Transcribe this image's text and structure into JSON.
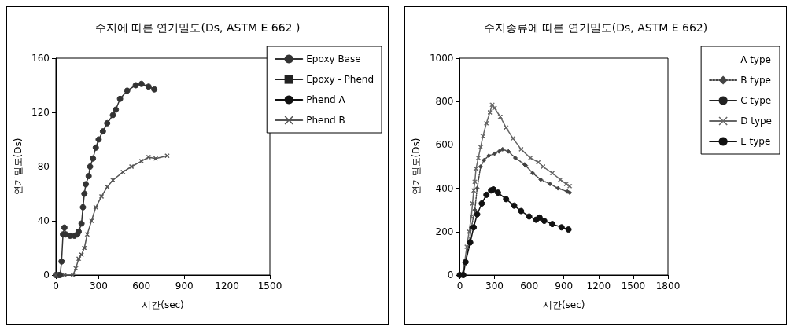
{
  "chart_data": [
    {
      "type": "line",
      "title": "수지에 따른 연기밀도(Ds, ASTM E 662 )",
      "xlabel": "시간(sec)",
      "ylabel": "연기밀도(Ds)",
      "xlim": [
        0,
        1500
      ],
      "xticks": [
        0,
        300,
        600,
        900,
        1200,
        1500
      ],
      "ylim": [
        0,
        160
      ],
      "yticks": [
        0,
        40,
        80,
        120,
        160
      ],
      "grid": false,
      "legend": "top right",
      "series": [
        {
          "name": "Epoxy Base",
          "color": "#333333",
          "marker": "circle",
          "line_style": "solid",
          "x": [
            0,
            20,
            30,
            40,
            50,
            60,
            70,
            100,
            130,
            150,
            160,
            180,
            190,
            200,
            210,
            230,
            240,
            260,
            280,
            300,
            330,
            360,
            400,
            420,
            450,
            500,
            560,
            600,
            650,
            690
          ],
          "values": [
            0,
            0,
            0,
            10,
            30,
            35,
            30,
            29,
            29,
            30,
            32,
            38,
            50,
            60,
            67,
            73,
            80,
            86,
            94,
            100,
            106,
            112,
            118,
            122,
            130,
            136,
            140,
            141,
            139,
            137
          ]
        },
        {
          "name": "Epoxy - Phend",
          "color": "#222222",
          "marker": "square",
          "line_style": "solid"
        },
        {
          "name": "Phend A",
          "color": "#111111",
          "marker": "none",
          "line_style": "solid"
        },
        {
          "name": "Phend B",
          "color": "#555555",
          "marker": "cross",
          "line_style": "solid",
          "x": [
            0,
            60,
            120,
            140,
            160,
            180,
            200,
            220,
            250,
            280,
            320,
            360,
            400,
            470,
            530,
            600,
            650,
            700,
            780
          ],
          "values": [
            0,
            0,
            0,
            5,
            12,
            15,
            20,
            30,
            40,
            50,
            58,
            65,
            70,
            76,
            80,
            84,
            87,
            86,
            88
          ]
        }
      ]
    },
    {
      "type": "line",
      "title": "수지종류에 따른 연기밀도(Ds, ASTM E 662)",
      "xlabel": "시간(sec)",
      "ylabel": "연기밀도(Ds)",
      "xlim": [
        0,
        1800
      ],
      "xticks": [
        0,
        300,
        600,
        900,
        1200,
        1500,
        1800
      ],
      "ylim": [
        0,
        1000
      ],
      "yticks": [
        0,
        200,
        400,
        600,
        800,
        1000
      ],
      "grid": false,
      "legend": "top right",
      "series": [
        {
          "name": "A type"
        },
        {
          "name": "B type",
          "color": "#444444",
          "marker": "diamond",
          "line_style": "dotted",
          "x": [
            0,
            20,
            50,
            80,
            100,
            130,
            150,
            180,
            210,
            250,
            300,
            340,
            370,
            420,
            480,
            560,
            570,
            630,
            700,
            780,
            850,
            930,
            950
          ],
          "values": [
            0,
            0,
            60,
            150,
            220,
            300,
            400,
            500,
            530,
            550,
            560,
            570,
            580,
            570,
            540,
            510,
            505,
            470,
            440,
            420,
            400,
            385,
            380
          ]
        },
        {
          "name": "C type",
          "color": "#222222",
          "marker": "none",
          "line_style": "solid"
        },
        {
          "name": "D type",
          "color": "#666666",
          "marker": "cross",
          "line_style": "solid",
          "x": [
            0,
            20,
            40,
            60,
            80,
            100,
            110,
            120,
            130,
            140,
            160,
            180,
            200,
            230,
            260,
            280,
            300,
            350,
            400,
            460,
            530,
            610,
            680,
            720,
            800,
            870,
            920,
            950
          ],
          "values": [
            0,
            0,
            50,
            130,
            200,
            270,
            330,
            390,
            430,
            490,
            540,
            590,
            640,
            700,
            750,
            785,
            770,
            730,
            680,
            630,
            580,
            540,
            520,
            500,
            470,
            440,
            420,
            410
          ]
        },
        {
          "name": "E type",
          "color": "#111111",
          "marker": "circle",
          "line_style": "solid",
          "x": [
            0,
            30,
            50,
            90,
            120,
            150,
            190,
            230,
            270,
            290,
            330,
            400,
            470,
            530,
            600,
            660,
            690,
            730,
            800,
            880,
            940
          ],
          "values": [
            0,
            0,
            60,
            150,
            220,
            280,
            330,
            370,
            390,
            395,
            380,
            350,
            320,
            295,
            270,
            255,
            265,
            250,
            235,
            220,
            210
          ]
        }
      ]
    }
  ]
}
